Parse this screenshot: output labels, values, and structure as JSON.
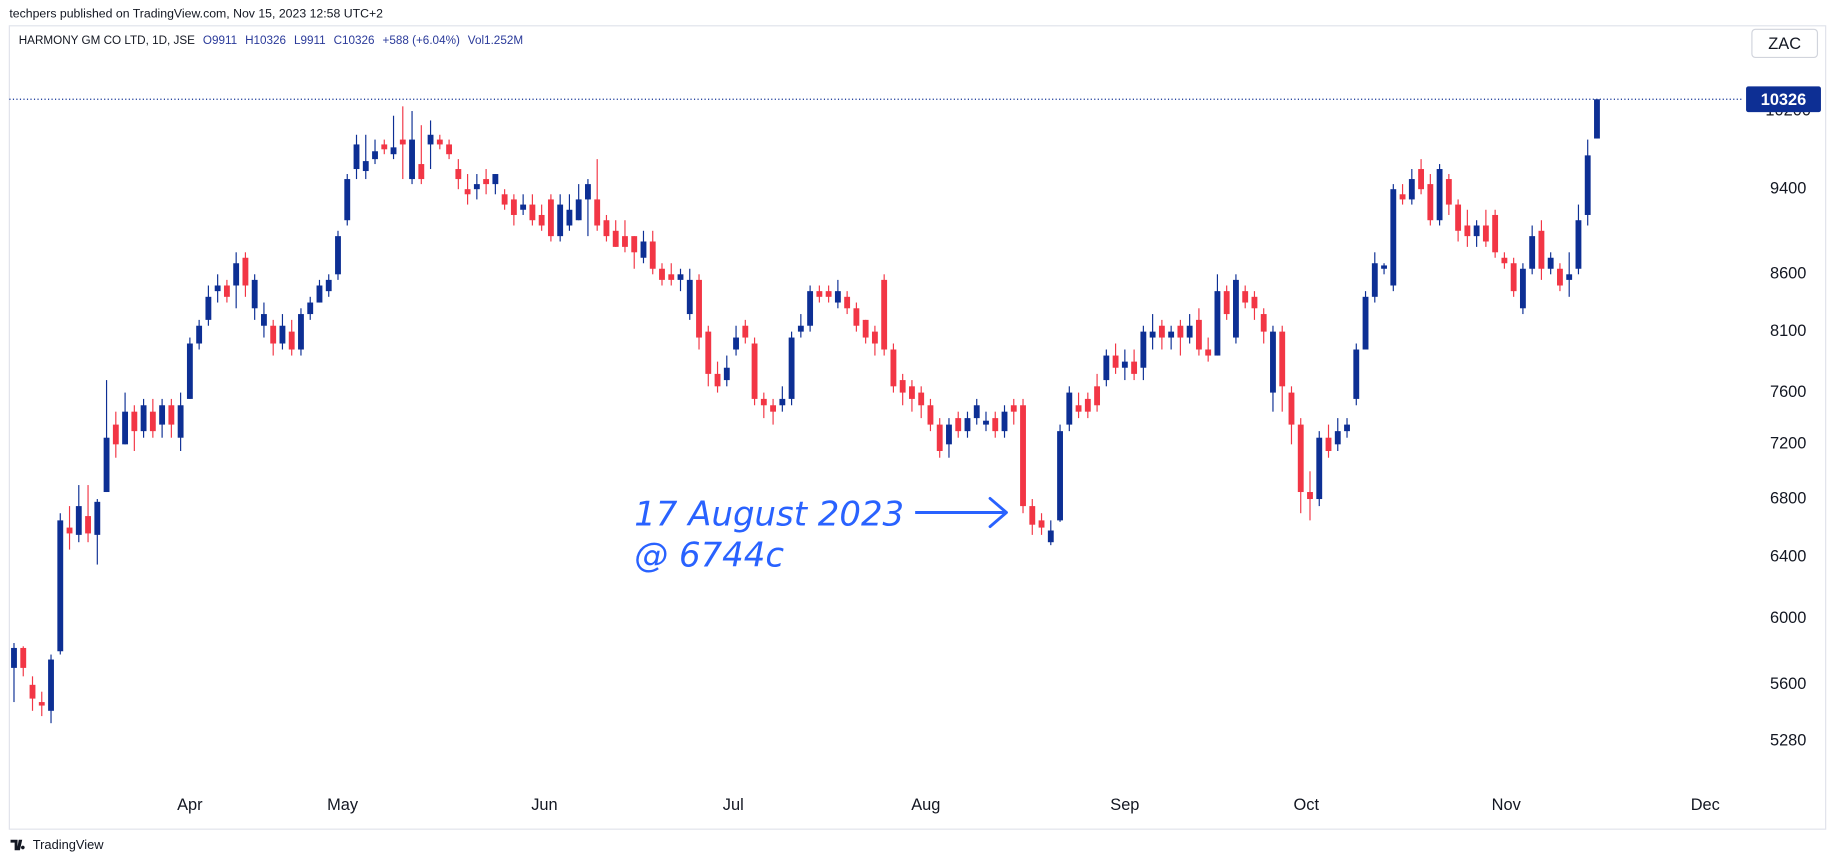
{
  "chart_data": {
    "type": "candlestick",
    "attribution": "techpers published on TradingView.com, Nov 15, 2023 12:58 UTC+2",
    "title": "HARMONY GM CO LTD, 1D, JSE",
    "legend_values": [
      "O9911",
      "H10326",
      "L9911",
      "C10326",
      "+588 (+6.04%)",
      "Vol1.252M"
    ],
    "currency": "ZAC",
    "last_price": 10326,
    "annotation": [
      "17 August 2023",
      "@ 6744c"
    ],
    "annotation_color": "#2962ff",
    "watermark": "TradingView",
    "up_color": "#0d2f94",
    "down_color": "#f23645",
    "log_scale": true,
    "grid": false,
    "ylim": [
      4816,
      11150
    ],
    "yticks": [
      5280,
      5600,
      6000,
      6400,
      6800,
      7200,
      7600,
      8100,
      8600,
      9400,
      10200
    ],
    "xlim": [
      -0.5,
      186.6
    ],
    "xticks": [
      {
        "value": 19.0,
        "label": "Apr"
      },
      {
        "value": 35.5,
        "label": "May"
      },
      {
        "value": 57.3,
        "label": "Jun"
      },
      {
        "value": 77.7,
        "label": "Jul"
      },
      {
        "value": 98.5,
        "label": "Aug"
      },
      {
        "value": 120.0,
        "label": "Sep"
      },
      {
        "value": 139.6,
        "label": "Oct"
      },
      {
        "value": 161.2,
        "label": "Nov"
      },
      {
        "value": 182.7,
        "label": "Dec"
      }
    ],
    "open": [
      5700,
      5820,
      5600,
      5500,
      5450,
      5800,
      6600,
      6550,
      6680,
      6550,
      6850,
      7350,
      7200,
      7450,
      7300,
      7450,
      7350,
      7500,
      7250,
      7550,
      8000,
      8200,
      8450,
      8500,
      8500,
      8750,
      8300,
      8150,
      8150,
      8000,
      8100,
      7950,
      8250,
      8350,
      8450,
      8600,
      9100,
      9600,
      9580,
      9700,
      9850,
      9750,
      9900,
      9500,
      9650,
      9850,
      9900,
      9850,
      9600,
      9400,
      9400,
      9500,
      9450,
      9350,
      9300,
      9200,
      9250,
      9150,
      9300,
      8950,
      9050,
      9100,
      9300,
      9300,
      9100,
      9000,
      8950,
      8950,
      8750,
      8900,
      8650,
      8600,
      8550,
      8250,
      8550,
      8100,
      7750,
      7700,
      7950,
      8150,
      8000,
      7550,
      7500,
      7500,
      7550,
      8100,
      8150,
      8450,
      8450,
      8350,
      8400,
      8300,
      8200,
      8100,
      8550,
      7950,
      7700,
      7650,
      7600,
      7500,
      7350,
      7200,
      7400,
      7300,
      7400,
      7350,
      7400,
      7300,
      7500,
      7500,
      6750,
      6650,
      6500,
      6650,
      7350,
      7500,
      7550,
      7650,
      7700,
      7900,
      7800,
      7850,
      7800,
      8050,
      8150,
      8050,
      8150,
      8050,
      8200,
      7950,
      7900,
      8450,
      8050,
      8450,
      8400,
      8250,
      7600,
      8100,
      7600,
      7350,
      6850,
      6800,
      7250,
      7200,
      7300,
      7550,
      7950,
      8400,
      8650,
      8500,
      9350,
      9300,
      9600,
      9450,
      9100,
      9500,
      9250,
      9050,
      8950,
      9050,
      9150,
      8750,
      8700,
      8300,
      8650,
      9000,
      8650,
      8650,
      8550,
      8650,
      9150,
      9911
    ],
    "high": [
      5850,
      5830,
      5650,
      5560,
      5780,
      6700,
      6750,
      6900,
      6900,
      6800,
      7700,
      7450,
      7600,
      7500,
      7550,
      7550,
      7550,
      7550,
      7600,
      8050,
      8200,
      8500,
      8600,
      8550,
      8800,
      8800,
      8600,
      8350,
      8200,
      8250,
      8200,
      8300,
      8400,
      8550,
      8600,
      9000,
      9550,
      9950,
      9950,
      9900,
      9900,
      10150,
      10250,
      10200,
      10050,
      10100,
      9950,
      9900,
      9700,
      9550,
      9550,
      9600,
      9550,
      9400,
      9350,
      9350,
      9350,
      9250,
      9350,
      9350,
      9350,
      9450,
      9500,
      9700,
      9150,
      9100,
      9100,
      8950,
      9000,
      9000,
      8700,
      8700,
      8650,
      8650,
      8600,
      8150,
      7850,
      7900,
      8150,
      8200,
      8050,
      7600,
      7550,
      7650,
      8100,
      8250,
      8500,
      8500,
      8500,
      8550,
      8450,
      8350,
      8200,
      8150,
      8600,
      8000,
      7750,
      7700,
      7650,
      7550,
      7400,
      7400,
      7450,
      7450,
      7550,
      7450,
      7450,
      7500,
      7550,
      7550,
      6800,
      6700,
      6650,
      7350,
      7650,
      7600,
      7600,
      7750,
      7950,
      8000,
      7950,
      7950,
      8150,
      8250,
      8200,
      8150,
      8200,
      8250,
      8300,
      8050,
      8600,
      8500,
      8600,
      8500,
      8450,
      8300,
      8150,
      8150,
      7650,
      7400,
      7000,
      7300,
      7350,
      7400,
      7400,
      8000,
      8450,
      8800,
      8700,
      9450,
      9450,
      9600,
      9700,
      9550,
      9650,
      9550,
      9300,
      9200,
      9100,
      9200,
      9200,
      8800,
      8750,
      8700,
      9050,
      9100,
      8800,
      8700,
      8800,
      9250,
      9900,
      10326
    ],
    "low": [
      5500,
      5650,
      5450,
      5420,
      5380,
      5780,
      6450,
      6500,
      6500,
      6350,
      6850,
      7100,
      7200,
      7150,
      7250,
      7250,
      7250,
      7250,
      7150,
      7550,
      7950,
      8150,
      8350,
      8350,
      8300,
      8400,
      8200,
      8050,
      7900,
      7950,
      7900,
      7900,
      8200,
      8350,
      8400,
      8550,
      9050,
      9500,
      9500,
      9650,
      9750,
      9700,
      9500,
      9450,
      9450,
      9600,
      9800,
      9700,
      9400,
      9250,
      9300,
      9350,
      9350,
      9200,
      9050,
      9150,
      9050,
      9000,
      8900,
      8900,
      9000,
      9100,
      8950,
      9000,
      8900,
      8850,
      8800,
      8650,
      8700,
      8600,
      8500,
      8500,
      8450,
      8200,
      7950,
      7650,
      7600,
      7650,
      7900,
      8000,
      7500,
      7400,
      7350,
      7450,
      7500,
      8050,
      8100,
      8350,
      8350,
      8300,
      8250,
      8100,
      8000,
      7900,
      7900,
      7600,
      7500,
      7450,
      7400,
      7300,
      7100,
      7100,
      7250,
      7250,
      7350,
      7300,
      7250,
      7250,
      7350,
      6700,
      6550,
      6550,
      6480,
      6640,
      7300,
      7400,
      7400,
      7450,
      7650,
      7750,
      7700,
      7700,
      7700,
      7950,
      7950,
      7950,
      7900,
      8000,
      7900,
      7850,
      7900,
      8200,
      8000,
      8300,
      8200,
      8000,
      7450,
      7450,
      7200,
      6700,
      6650,
      6750,
      7100,
      7150,
      7250,
      7500,
      7950,
      8350,
      8600,
      8450,
      9250,
      9250,
      9350,
      9050,
      9050,
      9150,
      8900,
      8850,
      8850,
      8850,
      8750,
      8650,
      8400,
      8250,
      8600,
      8550,
      8600,
      8450,
      8400,
      8600,
      9050,
      9911
    ],
    "close": [
      5820,
      5700,
      5520,
      5480,
      5750,
      6650,
      6560,
      6750,
      6560,
      6780,
      7250,
      7200,
      7450,
      7300,
      7500,
      7300,
      7500,
      7350,
      7500,
      8000,
      8150,
      8400,
      8500,
      8400,
      8700,
      8500,
      8550,
      8250,
      8000,
      8150,
      7950,
      8250,
      8350,
      8500,
      8550,
      8950,
      9500,
      9850,
      9680,
      9780,
      9800,
      9820,
      9850,
      9900,
      9500,
      9950,
      9850,
      9750,
      9500,
      9350,
      9450,
      9450,
      9550,
      9250,
      9150,
      9250,
      9100,
      9050,
      8950,
      9250,
      9200,
      9300,
      9450,
      9050,
      8950,
      8850,
      8850,
      8800,
      8900,
      8650,
      8550,
      8550,
      8600,
      8550,
      8050,
      7750,
      7650,
      7800,
      8050,
      8050,
      7550,
      7500,
      7450,
      7550,
      8050,
      8150,
      8450,
      8400,
      8400,
      8450,
      8300,
      8150,
      8050,
      8000,
      7950,
      7650,
      7600,
      7550,
      7500,
      7350,
      7150,
      7350,
      7300,
      7400,
      7500,
      7380,
      7300,
      7450,
      7450,
      6750,
      6620,
      6600,
      6580,
      7300,
      7600,
      7450,
      7450,
      7500,
      7900,
      7800,
      7850,
      7750,
      8100,
      8100,
      8050,
      8100,
      8050,
      8150,
      7950,
      7900,
      8450,
      8250,
      8550,
      8350,
      8300,
      8100,
      8100,
      7650,
      7350,
      6850,
      6800,
      7250,
      7150,
      7300,
      7350,
      7950,
      8400,
      8700,
      8680,
      9400,
      9300,
      9500,
      9400,
      9100,
      9600,
      9250,
      9000,
      8950,
      9050,
      8900,
      8800,
      8700,
      8450,
      8650,
      8950,
      8650,
      8750,
      8500,
      8600,
      9100,
      9738,
      10326
    ]
  }
}
